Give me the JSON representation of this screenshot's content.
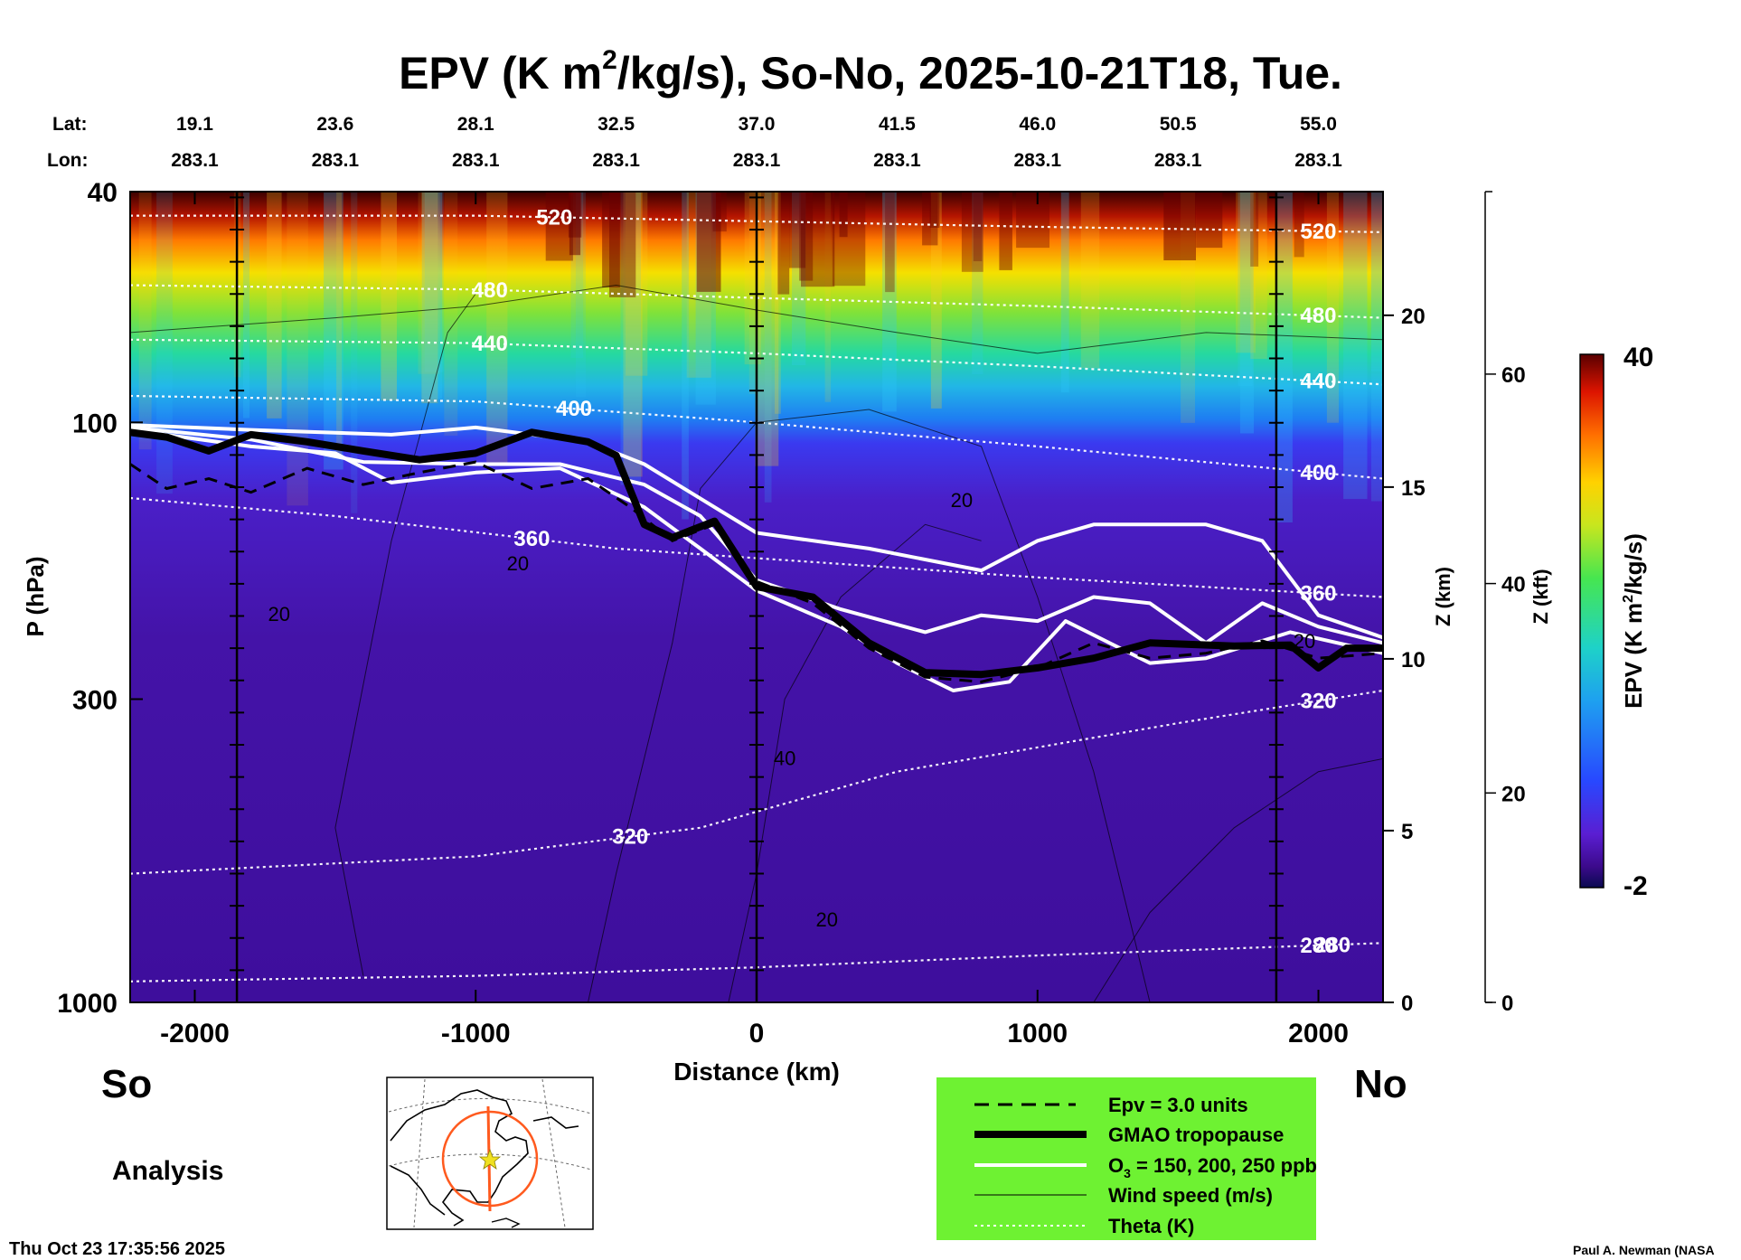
{
  "page": {
    "timestamp": "Thu Oct 23 17:35:56 2025",
    "author": "Paul A. Newman (NASA"
  },
  "chart_data": {
    "type": "contour-cross-section",
    "title_prefix": "EPV (K m",
    "title_sup": "2",
    "title_suffix": "/kg/s), So-No, 2025-10-21T18, Tue.",
    "xlabel": "Distance (km)",
    "ylabel": "P (hPa)",
    "z_km_label": "Z (km)",
    "z_kft_label": "Z (kft)",
    "left_label": "So",
    "right_label": "No",
    "analysis_label": "Analysis",
    "xlim": [
      -2230,
      2230
    ],
    "ylim_hpa": [
      1000,
      40
    ],
    "x_ticks": [
      -2000,
      -1000,
      0,
      1000,
      2000
    ],
    "x_tick_labels": [
      "-2000",
      "-1000",
      "0",
      "1000",
      "2000"
    ],
    "p_ticks": [
      1000,
      300,
      100,
      40
    ],
    "p_tick_labels": [
      "1000",
      "300",
      "100",
      "40"
    ],
    "z_km_ticks": [
      0,
      5,
      10,
      15,
      20
    ],
    "z_kft_ticks": [
      0,
      20,
      40,
      60
    ],
    "lat_label": "Lat:",
    "lon_label": "Lon:",
    "lat_lon_columns": [
      {
        "x_km": -2000,
        "lat": "19.1",
        "lon": "283.1"
      },
      {
        "x_km": -1500,
        "lat": "23.6",
        "lon": "283.1"
      },
      {
        "x_km": -1000,
        "lat": "28.1",
        "lon": "283.1"
      },
      {
        "x_km": -500,
        "lat": "32.5",
        "lon": "283.1"
      },
      {
        "x_km": 0,
        "lat": "37.0",
        "lon": "283.1"
      },
      {
        "x_km": 500,
        "lat": "41.5",
        "lon": "283.1"
      },
      {
        "x_km": 1000,
        "lat": "46.0",
        "lon": "283.1"
      },
      {
        "x_km": 1500,
        "lat": "50.5",
        "lon": "283.1"
      },
      {
        "x_km": 2000,
        "lat": "55.0",
        "lon": "283.1"
      }
    ],
    "vertical_markers_km": [
      -1850,
      0,
      1850
    ],
    "colorbar": {
      "label_prefix": "EPV (K m",
      "label_sup": "2",
      "label_suffix": "/kg/s)",
      "min_label": "-2",
      "max_label": "40",
      "min": -2,
      "max": 40
    },
    "theta_isentropes": [
      {
        "value": "280",
        "label": "280",
        "label_x_km": 2050,
        "points": [
          [
            -2230,
            920
          ],
          [
            -1000,
            900
          ],
          [
            0,
            870
          ],
          [
            1000,
            830
          ],
          [
            2230,
            790
          ]
        ]
      },
      {
        "value": "320",
        "label": "320",
        "label_x_km": -450,
        "points": [
          [
            -2230,
            600
          ],
          [
            -1000,
            560
          ],
          [
            -200,
            500
          ],
          [
            500,
            400
          ],
          [
            1500,
            330
          ],
          [
            2230,
            290
          ]
        ]
      },
      {
        "value": "360",
        "label": "360",
        "label_x_km": -800,
        "points": [
          [
            -2230,
            135
          ],
          [
            -1500,
            145
          ],
          [
            -500,
            165
          ],
          [
            1000,
            185
          ],
          [
            2230,
            200
          ]
        ]
      },
      {
        "value": "400",
        "label": "400",
        "label_x_km": -650,
        "points": [
          [
            -2230,
            90
          ],
          [
            -1000,
            92
          ],
          [
            0,
            100
          ],
          [
            1000,
            110
          ],
          [
            2230,
            125
          ]
        ]
      },
      {
        "value": "440",
        "label": "440",
        "label_x_km": -950,
        "points": [
          [
            -2230,
            72
          ],
          [
            -1000,
            73
          ],
          [
            0,
            76
          ],
          [
            1000,
            80
          ],
          [
            2230,
            86
          ]
        ]
      },
      {
        "value": "480",
        "label": "480",
        "label_x_km": -950,
        "points": [
          [
            -2230,
            58
          ],
          [
            -1000,
            59
          ],
          [
            0,
            61
          ],
          [
            1000,
            63
          ],
          [
            2230,
            66
          ]
        ]
      },
      {
        "value": "520",
        "label": "520",
        "label_x_km": -720,
        "points": [
          [
            -2230,
            44
          ],
          [
            -1000,
            44
          ],
          [
            0,
            45
          ],
          [
            1000,
            46
          ],
          [
            2230,
            47
          ]
        ]
      }
    ],
    "wind_speed_labels": [
      {
        "label": "20",
        "x_km": -1700,
        "p": 220
      },
      {
        "label": "20",
        "x_km": -850,
        "p": 180
      },
      {
        "label": "20",
        "x_km": 730,
        "p": 140
      },
      {
        "label": "40",
        "x_km": 100,
        "p": 390
      },
      {
        "label": "20",
        "x_km": 250,
        "p": 740
      },
      {
        "label": "20",
        "x_km": 1950,
        "p": 245
      }
    ],
    "gmao_tropopause": [
      [
        -2230,
        104
      ],
      [
        -2100,
        106
      ],
      [
        -1950,
        112
      ],
      [
        -1800,
        105
      ],
      [
        -1600,
        108
      ],
      [
        -1400,
        112
      ],
      [
        -1200,
        116
      ],
      [
        -1000,
        113
      ],
      [
        -800,
        104
      ],
      [
        -600,
        108
      ],
      [
        -500,
        114
      ],
      [
        -400,
        150
      ],
      [
        -300,
        158
      ],
      [
        -150,
        148
      ],
      [
        0,
        192
      ],
      [
        200,
        200
      ],
      [
        400,
        240
      ],
      [
        600,
        270
      ],
      [
        800,
        272
      ],
      [
        1000,
        265
      ],
      [
        1200,
        255
      ],
      [
        1400,
        240
      ],
      [
        1700,
        243
      ],
      [
        1900,
        242
      ],
      [
        2000,
        265
      ],
      [
        2100,
        245
      ],
      [
        2230,
        245
      ]
    ],
    "epv_3_units": [
      [
        -2230,
        118
      ],
      [
        -2100,
        130
      ],
      [
        -1950,
        125
      ],
      [
        -1800,
        132
      ],
      [
        -1600,
        120
      ],
      [
        -1400,
        128
      ],
      [
        -1200,
        122
      ],
      [
        -1000,
        117
      ],
      [
        -800,
        130
      ],
      [
        -600,
        125
      ],
      [
        -450,
        140
      ],
      [
        -300,
        160
      ],
      [
        -150,
        150
      ],
      [
        0,
        188
      ],
      [
        200,
        205
      ],
      [
        400,
        245
      ],
      [
        600,
        275
      ],
      [
        800,
        280
      ],
      [
        1000,
        265
      ],
      [
        1200,
        240
      ],
      [
        1400,
        255
      ],
      [
        1600,
        250
      ],
      [
        1800,
        238
      ],
      [
        2000,
        255
      ],
      [
        2230,
        250
      ]
    ],
    "o3_contours": [
      {
        "ppb": "150",
        "points": [
          [
            -2230,
            101
          ],
          [
            -1800,
            103
          ],
          [
            -1300,
            105
          ],
          [
            -1000,
            102
          ],
          [
            -600,
            108
          ],
          [
            -400,
            118
          ],
          [
            -150,
            140
          ],
          [
            0,
            155
          ],
          [
            400,
            165
          ],
          [
            800,
            180
          ],
          [
            1000,
            160
          ],
          [
            1200,
            150
          ],
          [
            1600,
            150
          ],
          [
            1800,
            160
          ],
          [
            2000,
            215
          ],
          [
            2230,
            235
          ]
        ]
      },
      {
        "ppb": "200",
        "points": [
          [
            -2230,
            102
          ],
          [
            -1800,
            107
          ],
          [
            -1400,
            117
          ],
          [
            -1000,
            118
          ],
          [
            -700,
            118
          ],
          [
            -400,
            128
          ],
          [
            -200,
            145
          ],
          [
            0,
            187
          ],
          [
            300,
            210
          ],
          [
            600,
            230
          ],
          [
            800,
            215
          ],
          [
            1000,
            220
          ],
          [
            1200,
            200
          ],
          [
            1400,
            205
          ],
          [
            1600,
            240
          ],
          [
            1800,
            205
          ],
          [
            2000,
            225
          ],
          [
            2230,
            240
          ]
        ]
      },
      {
        "ppb": "250",
        "points": [
          [
            -2230,
            103
          ],
          [
            -1800,
            110
          ],
          [
            -1500,
            113
          ],
          [
            -1300,
            127
          ],
          [
            -1000,
            122
          ],
          [
            -700,
            120
          ],
          [
            -400,
            140
          ],
          [
            -200,
            165
          ],
          [
            0,
            195
          ],
          [
            300,
            225
          ],
          [
            500,
            260
          ],
          [
            700,
            290
          ],
          [
            900,
            280
          ],
          [
            1100,
            220
          ],
          [
            1400,
            260
          ],
          [
            1600,
            255
          ],
          [
            1900,
            230
          ],
          [
            2230,
            250
          ]
        ]
      }
    ],
    "legend": [
      {
        "style": "dashed",
        "label": "Epv = 3.0 units"
      },
      {
        "style": "thick",
        "label": "GMAO tropopause"
      },
      {
        "style": "white",
        "label_prefix": "O",
        "label_sub": "3",
        "label_suffix": " = 150, 200, 250 ppb"
      },
      {
        "style": "thin",
        "label": "Wind speed (m/s)"
      },
      {
        "style": "dotted",
        "label": "Theta (K)"
      }
    ],
    "map_inset": {
      "name": "locator map of cross-section path over North America"
    }
  }
}
